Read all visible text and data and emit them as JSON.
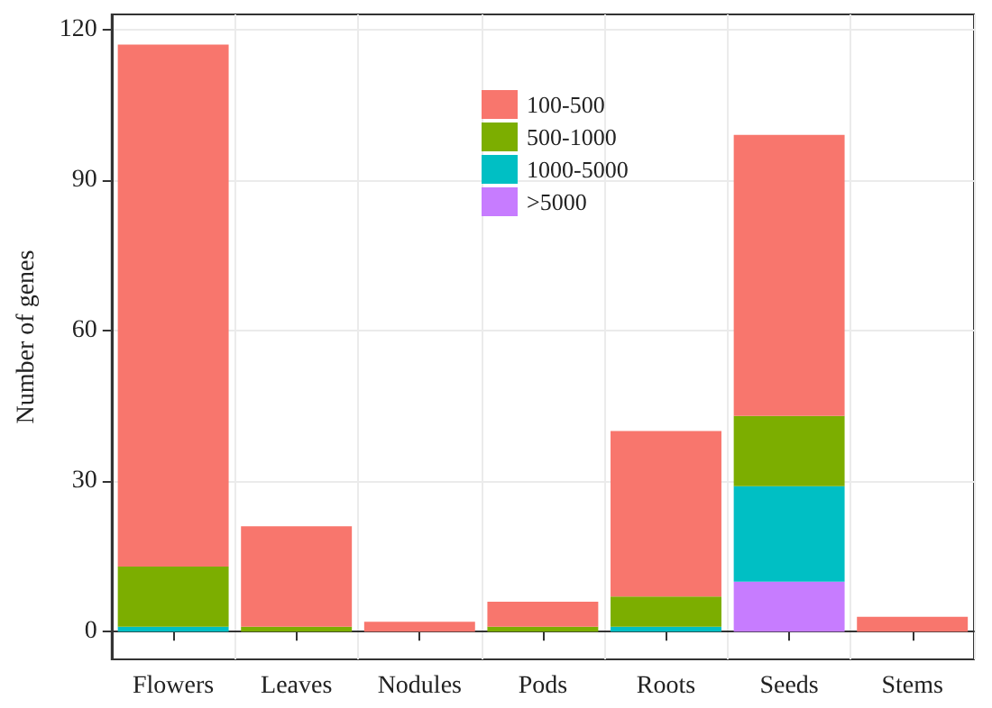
{
  "chart_data": {
    "type": "bar",
    "stacked": true,
    "ylabel": "Number of genes",
    "categories": [
      "Flowers",
      "Leaves",
      "Nodules",
      "Pods",
      "Roots",
      "Seeds",
      "Stems"
    ],
    "series": [
      {
        "name": ">5000",
        "color": "#c77cff",
        "values": [
          null,
          null,
          null,
          null,
          null,
          10,
          null
        ]
      },
      {
        "name": "1000-5000",
        "color": "#00bfc4",
        "values": [
          1,
          null,
          null,
          null,
          1,
          19,
          null
        ]
      },
      {
        "name": "500-1000",
        "color": "#7cae00",
        "values": [
          12,
          1,
          null,
          1,
          6,
          14,
          null
        ]
      },
      {
        "name": "100-500",
        "color": "#f8766d",
        "values": [
          104,
          20,
          2,
          5,
          33,
          56,
          3
        ]
      }
    ],
    "ylim": [
      -5.5,
      123
    ],
    "yticks": [
      0,
      30,
      60,
      90,
      120
    ],
    "grid": true,
    "legend": "top center"
  }
}
